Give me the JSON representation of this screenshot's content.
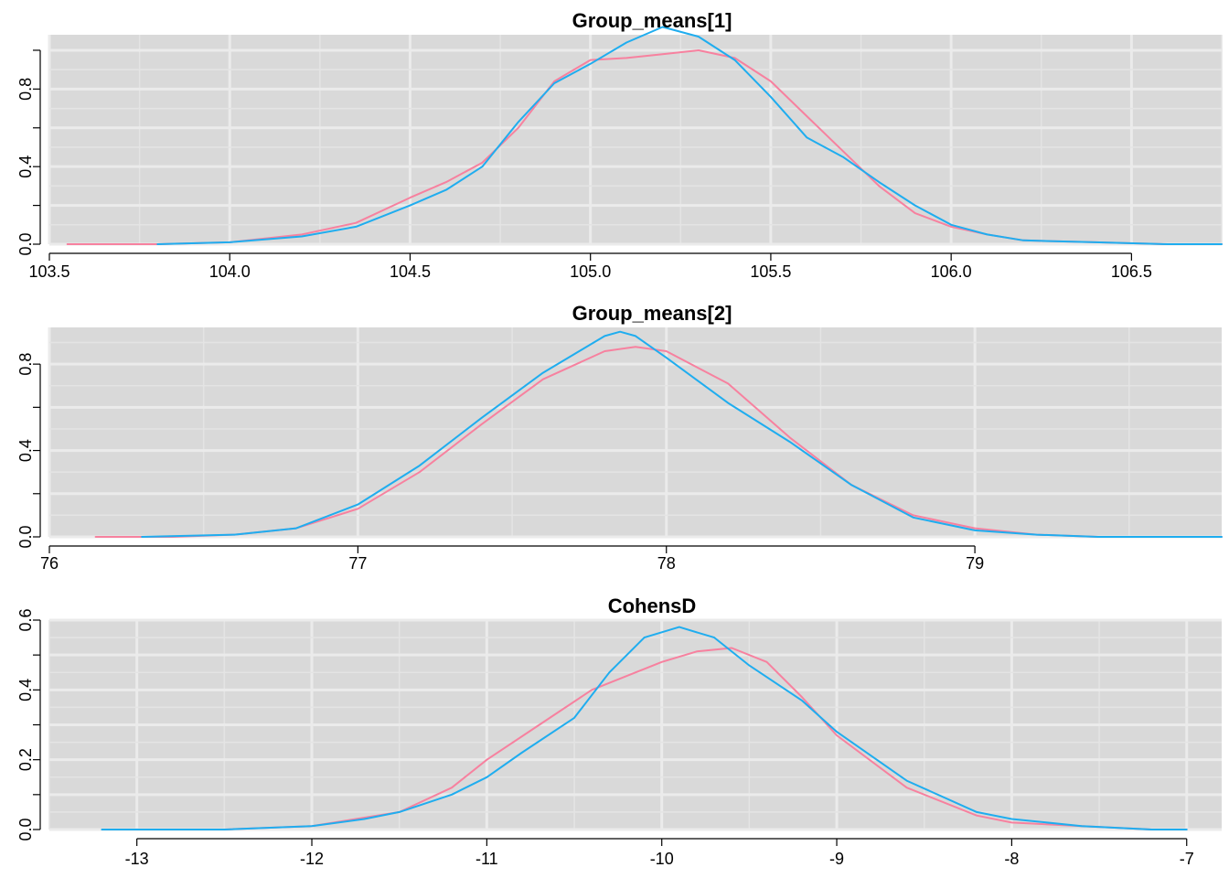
{
  "chart_data": [
    {
      "type": "line",
      "title": "Group_means[1]",
      "xlabel": "",
      "ylabel": "",
      "xlim": [
        103.5,
        106.75
      ],
      "ylim": [
        0,
        1.08
      ],
      "grid": true,
      "xticks": [
        103.5,
        104.0,
        104.5,
        105.0,
        105.5,
        106.0,
        106.5
      ],
      "xtick_labels": [
        "103.5",
        "104.0",
        "104.5",
        "105.0",
        "105.5",
        "106.0",
        "106.5"
      ],
      "yticks": [
        0.0,
        0.4,
        0.8
      ],
      "ytick_labels": [
        "0.0",
        "0.4",
        "0.8"
      ],
      "colors": [
        "#F7819F",
        "#1FADEF"
      ],
      "series": [
        {
          "x": [
            103.55,
            103.8,
            104.0,
            104.2,
            104.35,
            104.5,
            104.6,
            104.7,
            104.8,
            104.9,
            105.0,
            105.1,
            105.2,
            105.3,
            105.4,
            105.5,
            105.6,
            105.7,
            105.8,
            105.9,
            106.0,
            106.1,
            106.2,
            106.4,
            106.6,
            106.75
          ],
          "y": [
            0.0,
            0.0,
            0.01,
            0.05,
            0.11,
            0.24,
            0.32,
            0.42,
            0.6,
            0.84,
            0.95,
            0.96,
            0.98,
            1.0,
            0.96,
            0.84,
            0.66,
            0.48,
            0.3,
            0.16,
            0.09,
            0.05,
            0.02,
            0.01,
            0.0,
            0.0
          ]
        },
        {
          "x": [
            103.8,
            104.0,
            104.2,
            104.35,
            104.5,
            104.6,
            104.7,
            104.8,
            104.9,
            105.0,
            105.1,
            105.2,
            105.3,
            105.4,
            105.5,
            105.6,
            105.7,
            105.8,
            105.9,
            106.0,
            106.1,
            106.2,
            106.4,
            106.6,
            106.75
          ],
          "y": [
            0.0,
            0.01,
            0.04,
            0.09,
            0.2,
            0.28,
            0.4,
            0.63,
            0.83,
            0.93,
            1.04,
            1.12,
            1.07,
            0.95,
            0.76,
            0.55,
            0.45,
            0.32,
            0.2,
            0.1,
            0.05,
            0.02,
            0.01,
            0.0,
            0.0
          ]
        }
      ]
    },
    {
      "type": "line",
      "title": "Group_means[2]",
      "xlabel": "",
      "ylabel": "",
      "xlim": [
        76.0,
        79.8
      ],
      "ylim": [
        0,
        0.97
      ],
      "grid": true,
      "xticks": [
        76,
        77,
        78,
        79
      ],
      "xtick_labels": [
        "76",
        "77",
        "78",
        "79"
      ],
      "yticks": [
        0.0,
        0.4,
        0.8
      ],
      "ytick_labels": [
        "0.0",
        "0.4",
        "0.8"
      ],
      "colors": [
        "#F7819F",
        "#1FADEF"
      ],
      "series": [
        {
          "x": [
            76.15,
            76.4,
            76.6,
            76.8,
            77.0,
            77.2,
            77.4,
            77.6,
            77.8,
            77.9,
            78.0,
            78.2,
            78.4,
            78.6,
            78.8,
            79.0,
            79.2,
            79.4,
            79.6,
            79.8
          ],
          "y": [
            0.0,
            0.0,
            0.01,
            0.04,
            0.13,
            0.3,
            0.52,
            0.73,
            0.86,
            0.88,
            0.86,
            0.71,
            0.46,
            0.24,
            0.1,
            0.04,
            0.01,
            0.0,
            0.0,
            0.0
          ]
        },
        {
          "x": [
            76.3,
            76.6,
            76.8,
            77.0,
            77.2,
            77.4,
            77.6,
            77.8,
            77.85,
            77.9,
            78.0,
            78.2,
            78.4,
            78.6,
            78.8,
            79.0,
            79.2,
            79.4,
            79.8
          ],
          "y": [
            0.0,
            0.01,
            0.04,
            0.15,
            0.33,
            0.55,
            0.76,
            0.93,
            0.95,
            0.93,
            0.83,
            0.62,
            0.44,
            0.24,
            0.09,
            0.03,
            0.01,
            0.0,
            0.0
          ]
        }
      ]
    },
    {
      "type": "line",
      "title": "CohensD",
      "xlabel": "",
      "ylabel": "",
      "xlim": [
        -13.5,
        -6.8
      ],
      "ylim": [
        0,
        0.6
      ],
      "grid": true,
      "xticks": [
        -13,
        -12,
        -11,
        -10,
        -9,
        -8,
        -7
      ],
      "xtick_labels": [
        "-13",
        "-12",
        "-11",
        "-10",
        "-9",
        "-8",
        "-7"
      ],
      "yticks": [
        0.0,
        0.2,
        0.4,
        0.6
      ],
      "ytick_labels": [
        "0.0",
        "0.2",
        "0.4",
        "0.6"
      ],
      "colors": [
        "#F7819F",
        "#1FADEF"
      ],
      "series": [
        {
          "x": [
            -13.0,
            -12.5,
            -12.0,
            -11.5,
            -11.2,
            -11.0,
            -10.7,
            -10.4,
            -10.0,
            -9.8,
            -9.6,
            -9.4,
            -9.2,
            -9.0,
            -8.6,
            -8.2,
            -8.0,
            -7.6,
            -7.2,
            -7.0
          ],
          "y": [
            0.0,
            0.0,
            0.01,
            0.05,
            0.12,
            0.2,
            0.3,
            0.4,
            0.48,
            0.51,
            0.52,
            0.48,
            0.38,
            0.27,
            0.12,
            0.04,
            0.02,
            0.01,
            0.0,
            0.0
          ]
        },
        {
          "x": [
            -13.2,
            -12.8,
            -12.5,
            -12.0,
            -11.7,
            -11.5,
            -11.2,
            -11.0,
            -10.8,
            -10.5,
            -10.3,
            -10.1,
            -9.9,
            -9.7,
            -9.5,
            -9.2,
            -9.0,
            -8.6,
            -8.2,
            -8.0,
            -7.6,
            -7.2,
            -7.0
          ],
          "y": [
            0.0,
            0.0,
            0.0,
            0.01,
            0.03,
            0.05,
            0.1,
            0.15,
            0.22,
            0.32,
            0.45,
            0.55,
            0.58,
            0.55,
            0.47,
            0.37,
            0.28,
            0.14,
            0.05,
            0.03,
            0.01,
            0.0,
            0.0
          ]
        }
      ]
    }
  ]
}
